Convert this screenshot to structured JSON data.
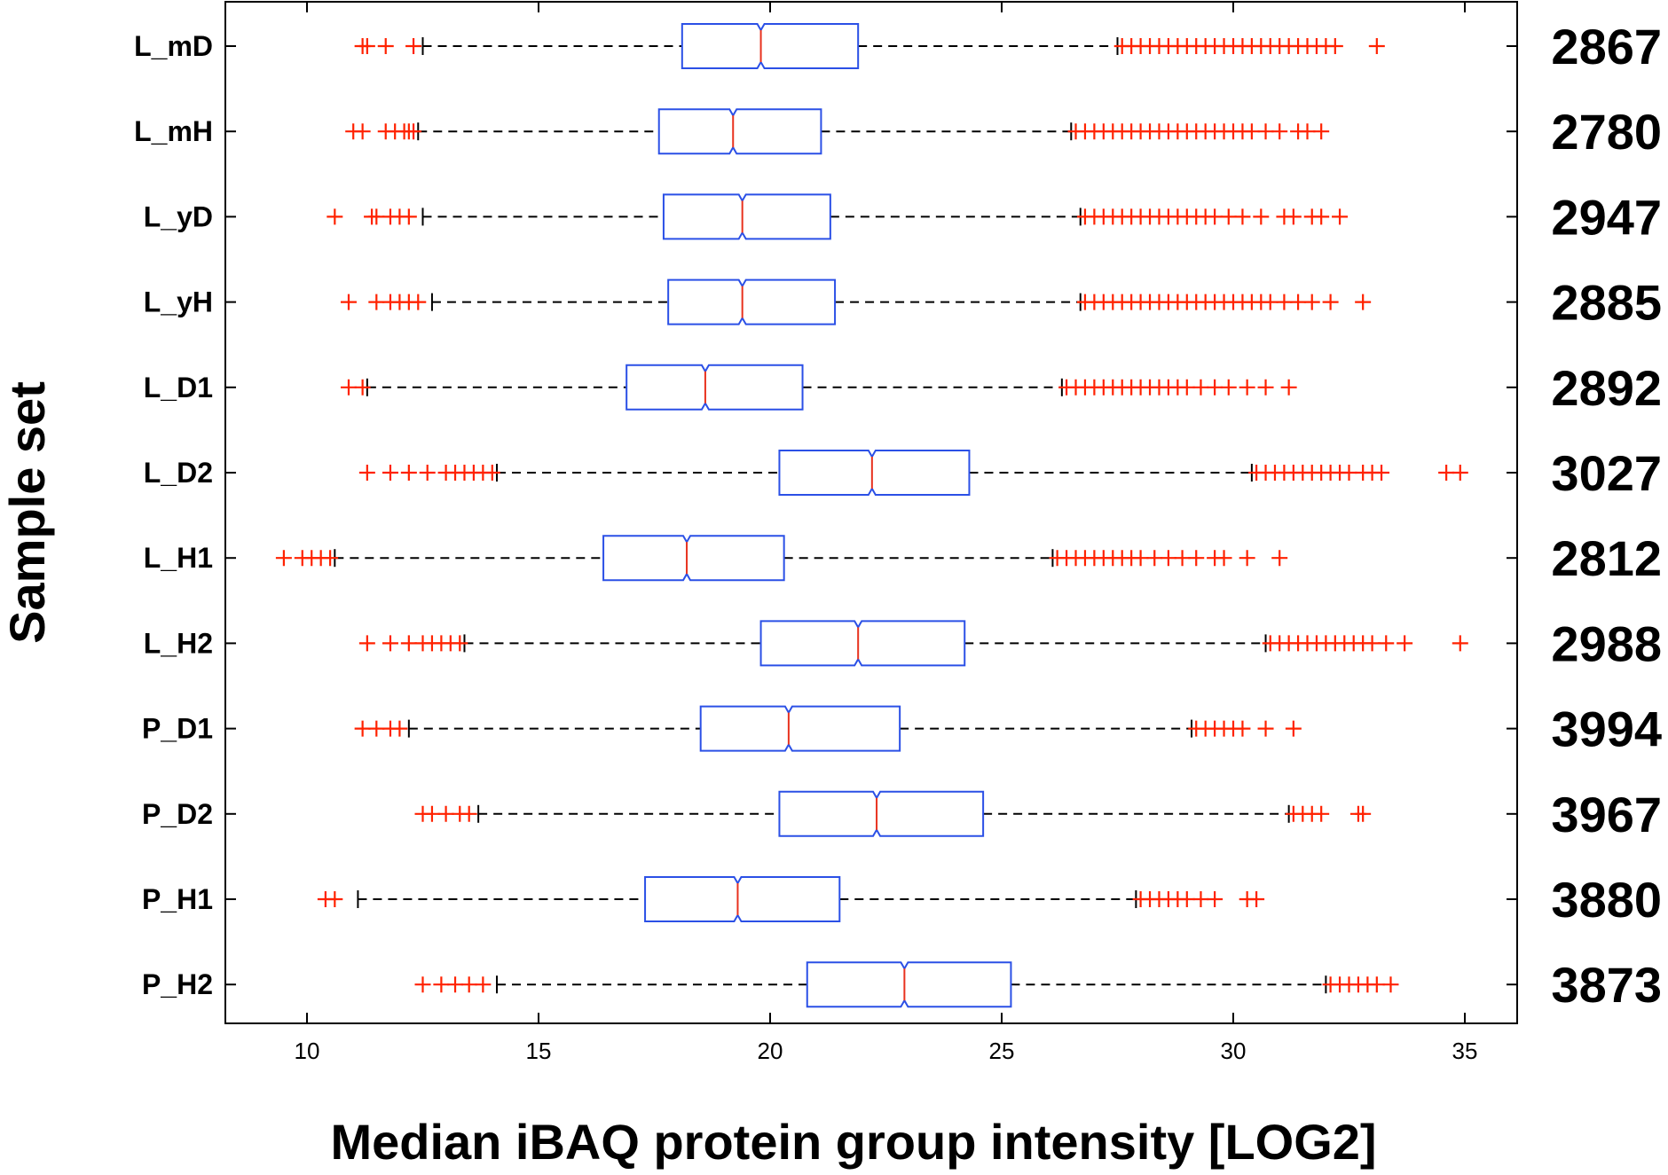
{
  "chart_data": {
    "type": "boxplot",
    "orientation": "horizontal",
    "notched": true,
    "title": "",
    "xlabel": "Median iBAQ protein group intensity [LOG2]",
    "ylabel": "Sample set",
    "xlim": [
      8.2,
      36.2
    ],
    "xticks": [
      10,
      15,
      20,
      25,
      30,
      35
    ],
    "grid": false,
    "colors": {
      "box": "#2b50e6",
      "median": "#e8321e",
      "outlier": "#ff2200",
      "whisker": "#000000"
    },
    "series": [
      {
        "category": "L_mD",
        "count": "2867",
        "q1": 18.1,
        "median": 19.8,
        "q3": 21.9,
        "whisker_low": 12.5,
        "whisker_high": 27.5,
        "outliers_low": [
          11.2,
          11.3,
          11.7,
          12.3
        ],
        "outliers_high": [
          27.6,
          27.8,
          28.0,
          28.2,
          28.4,
          28.6,
          28.8,
          29.0,
          29.2,
          29.4,
          29.6,
          29.8,
          30.0,
          30.2,
          30.4,
          30.6,
          30.8,
          31.0,
          31.2,
          31.4,
          31.6,
          31.8,
          32.0,
          32.2,
          33.1
        ]
      },
      {
        "category": "L_mH",
        "count": "2780",
        "q1": 17.6,
        "median": 19.2,
        "q3": 21.1,
        "whisker_low": 12.4,
        "whisker_high": 26.5,
        "outliers_low": [
          11.0,
          11.2,
          11.7,
          11.9,
          12.1,
          12.2,
          12.3
        ],
        "outliers_high": [
          26.6,
          26.8,
          27.0,
          27.2,
          27.4,
          27.6,
          27.8,
          28.0,
          28.2,
          28.4,
          28.6,
          28.8,
          29.0,
          29.2,
          29.4,
          29.6,
          29.8,
          30.0,
          30.2,
          30.4,
          30.7,
          31.0,
          31.4,
          31.6,
          31.9
        ]
      },
      {
        "category": "L_yD",
        "count": "2947",
        "q1": 17.7,
        "median": 19.4,
        "q3": 21.3,
        "whisker_low": 12.5,
        "whisker_high": 26.7,
        "outliers_low": [
          10.6,
          11.4,
          11.5,
          11.8,
          12.0,
          12.2
        ],
        "outliers_high": [
          26.8,
          27.0,
          27.2,
          27.4,
          27.6,
          27.8,
          28.0,
          28.2,
          28.4,
          28.6,
          28.8,
          29.0,
          29.2,
          29.4,
          29.6,
          29.9,
          30.2,
          30.6,
          31.1,
          31.3,
          31.7,
          31.9,
          32.3
        ]
      },
      {
        "category": "L_yH",
        "count": "2885",
        "q1": 17.8,
        "median": 19.4,
        "q3": 21.4,
        "whisker_low": 12.7,
        "whisker_high": 26.7,
        "outliers_low": [
          10.9,
          11.5,
          11.8,
          12.0,
          12.2,
          12.4
        ],
        "outliers_high": [
          26.8,
          27.0,
          27.2,
          27.4,
          27.6,
          27.8,
          28.0,
          28.2,
          28.4,
          28.6,
          28.8,
          29.0,
          29.2,
          29.4,
          29.6,
          29.8,
          30.0,
          30.2,
          30.4,
          30.6,
          30.8,
          31.1,
          31.4,
          31.7,
          32.1,
          32.8
        ]
      },
      {
        "category": "L_D1",
        "count": "2892",
        "q1": 16.9,
        "median": 18.6,
        "q3": 20.7,
        "whisker_low": 11.3,
        "whisker_high": 26.3,
        "outliers_low": [
          10.9,
          11.2
        ],
        "outliers_high": [
          26.4,
          26.6,
          26.8,
          27.0,
          27.2,
          27.4,
          27.6,
          27.8,
          28.0,
          28.2,
          28.4,
          28.6,
          28.8,
          29.0,
          29.3,
          29.6,
          29.9,
          30.3,
          30.7,
          31.2
        ]
      },
      {
        "category": "L_D2",
        "count": "3027",
        "q1": 20.2,
        "median": 22.2,
        "q3": 24.3,
        "whisker_low": 14.1,
        "whisker_high": 30.4,
        "outliers_low": [
          11.3,
          11.8,
          12.2,
          12.6,
          13.0,
          13.2,
          13.4,
          13.6,
          13.8,
          14.0
        ],
        "outliers_high": [
          30.5,
          30.7,
          30.9,
          31.1,
          31.3,
          31.5,
          31.7,
          31.9,
          32.1,
          32.3,
          32.5,
          32.8,
          33.0,
          33.2,
          34.6,
          34.9
        ]
      },
      {
        "category": "L_H1",
        "count": "2812",
        "q1": 16.4,
        "median": 18.2,
        "q3": 20.3,
        "whisker_low": 10.6,
        "whisker_high": 26.1,
        "outliers_low": [
          9.5,
          9.9,
          10.1,
          10.3,
          10.5
        ],
        "outliers_high": [
          26.2,
          26.4,
          26.6,
          26.8,
          27.0,
          27.2,
          27.4,
          27.6,
          27.8,
          28.0,
          28.3,
          28.6,
          28.9,
          29.2,
          29.6,
          29.8,
          30.3,
          31.0
        ]
      },
      {
        "category": "L_H2",
        "count": "2988",
        "q1": 19.8,
        "median": 21.9,
        "q3": 24.2,
        "whisker_low": 13.4,
        "whisker_high": 30.7,
        "outliers_low": [
          11.3,
          11.8,
          12.2,
          12.5,
          12.7,
          12.9,
          13.1,
          13.3
        ],
        "outliers_high": [
          30.8,
          31.0,
          31.2,
          31.4,
          31.6,
          31.8,
          32.0,
          32.2,
          32.4,
          32.6,
          32.8,
          33.0,
          33.3,
          33.7,
          34.9
        ]
      },
      {
        "category": "P_D1",
        "count": "3994",
        "q1": 18.5,
        "median": 20.4,
        "q3": 22.8,
        "whisker_low": 12.2,
        "whisker_high": 29.1,
        "outliers_low": [
          11.2,
          11.5,
          11.8,
          12.0
        ],
        "outliers_high": [
          29.2,
          29.4,
          29.6,
          29.8,
          30.0,
          30.2,
          30.7,
          31.3
        ]
      },
      {
        "category": "P_D2",
        "count": "3967",
        "q1": 20.2,
        "median": 22.3,
        "q3": 24.6,
        "whisker_low": 13.7,
        "whisker_high": 31.2,
        "outliers_low": [
          12.5,
          12.7,
          13.0,
          13.3,
          13.5
        ],
        "outliers_high": [
          31.3,
          31.5,
          31.7,
          31.9,
          32.7,
          32.8
        ]
      },
      {
        "category": "P_H1",
        "count": "3880",
        "q1": 17.3,
        "median": 19.3,
        "q3": 21.5,
        "whisker_low": 11.1,
        "whisker_high": 27.9,
        "outliers_low": [
          10.4,
          10.6
        ],
        "outliers_high": [
          28.0,
          28.2,
          28.4,
          28.6,
          28.8,
          29.0,
          29.3,
          29.6,
          30.3,
          30.5
        ]
      },
      {
        "category": "P_H2",
        "count": "3873",
        "q1": 20.8,
        "median": 22.9,
        "q3": 25.2,
        "whisker_low": 14.1,
        "whisker_high": 32.0,
        "outliers_low": [
          12.5,
          12.9,
          13.2,
          13.5,
          13.8
        ],
        "outliers_high": [
          32.1,
          32.3,
          32.5,
          32.7,
          32.9,
          33.1,
          33.4
        ]
      }
    ]
  }
}
